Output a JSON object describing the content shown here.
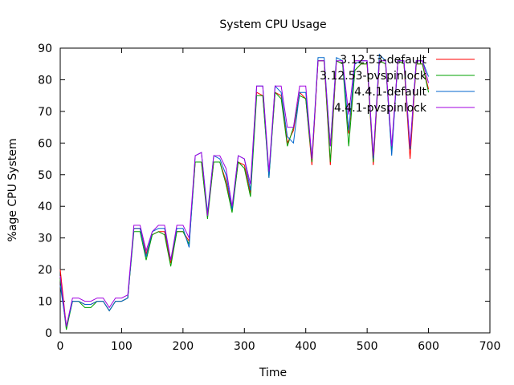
{
  "chart_data": {
    "type": "line",
    "title": "System CPU Usage",
    "xlabel": "Time",
    "ylabel": "%age CPU System",
    "xlim": [
      0,
      700
    ],
    "ylim": [
      0,
      90
    ],
    "xticks": [
      0,
      100,
      200,
      300,
      400,
      500,
      600,
      700
    ],
    "yticks": [
      0,
      10,
      20,
      30,
      40,
      50,
      60,
      70,
      80,
      90
    ],
    "grid": false,
    "legend_position": "top-right",
    "x": [
      0,
      10,
      20,
      30,
      40,
      50,
      60,
      70,
      80,
      90,
      100,
      110,
      120,
      130,
      140,
      150,
      160,
      170,
      180,
      190,
      200,
      210,
      220,
      230,
      240,
      250,
      260,
      270,
      280,
      290,
      300,
      310,
      320,
      330,
      340,
      350,
      360,
      370,
      380,
      390,
      400,
      410,
      420,
      430,
      440,
      450,
      460,
      470,
      480,
      490,
      500,
      510,
      520,
      530,
      540,
      550,
      560,
      570,
      580,
      590,
      600
    ],
    "series": [
      {
        "name": "3.12.53-default",
        "color": "#ff0000",
        "values": [
          20,
          2,
          10,
          10,
          9,
          9,
          10,
          10,
          7,
          10,
          10,
          11,
          33,
          33,
          25,
          31,
          32,
          32,
          22,
          32,
          32,
          29,
          54,
          54,
          37,
          54,
          54,
          48,
          39,
          54,
          53,
          44,
          76,
          75,
          50,
          76,
          75,
          60,
          64,
          76,
          74,
          53,
          86,
          86,
          53,
          86,
          85,
          63,
          83,
          85,
          85,
          53,
          86,
          85,
          57,
          86,
          85,
          55,
          85,
          85,
          77
        ]
      },
      {
        "name": "3.12.53-pvspinlock",
        "color": "#00a000",
        "values": [
          17,
          1,
          10,
          10,
          8,
          8,
          10,
          10,
          7,
          10,
          10,
          11,
          32,
          32,
          23,
          31,
          32,
          31,
          21,
          32,
          32,
          28,
          54,
          54,
          36,
          54,
          54,
          47,
          38,
          54,
          52,
          43,
          75,
          75,
          49,
          76,
          74,
          59,
          65,
          75,
          74,
          54,
          86,
          86,
          54,
          86,
          85,
          59,
          83,
          85,
          85,
          54,
          86,
          85,
          58,
          86,
          85,
          58,
          85,
          85,
          76
        ]
      },
      {
        "name": "4.4.1-default",
        "color": "#0066cc",
        "values": [
          15,
          2,
          10,
          10,
          9,
          9,
          10,
          10,
          7,
          10,
          10,
          11,
          33,
          33,
          24,
          32,
          33,
          33,
          23,
          33,
          33,
          27,
          56,
          57,
          38,
          56,
          55,
          50,
          39,
          56,
          55,
          45,
          78,
          78,
          49,
          78,
          76,
          62,
          60,
          76,
          76,
          55,
          87,
          87,
          59,
          87,
          86,
          64,
          85,
          86,
          86,
          55,
          88,
          86,
          56,
          86,
          86,
          58,
          86,
          86,
          81
        ]
      },
      {
        "name": "4.4.1-pvspinlock",
        "color": "#a000e0",
        "values": [
          18,
          2,
          11,
          11,
          10,
          10,
          11,
          11,
          8,
          11,
          11,
          12,
          34,
          34,
          26,
          32,
          34,
          34,
          23,
          34,
          34,
          30,
          56,
          57,
          37,
          56,
          56,
          52,
          40,
          56,
          55,
          47,
          78,
          78,
          51,
          78,
          78,
          65,
          65,
          78,
          78,
          55,
          86,
          86,
          59,
          86,
          86,
          69,
          86,
          86,
          86,
          56,
          86,
          86,
          59,
          86,
          86,
          59,
          86,
          86,
          79
        ]
      }
    ]
  }
}
